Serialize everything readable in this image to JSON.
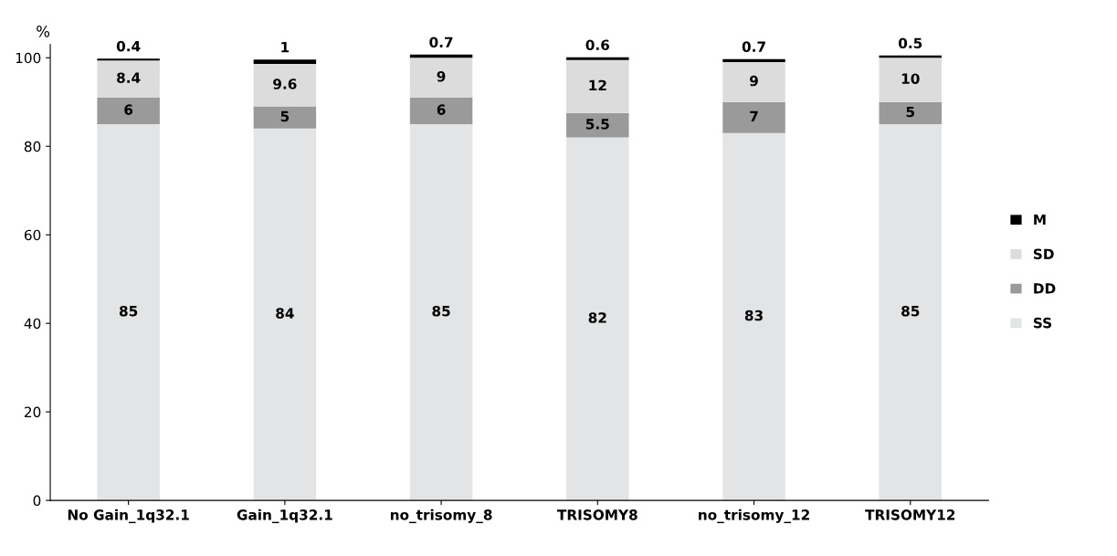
{
  "chart_data": {
    "type": "bar",
    "stacked": true,
    "ylabel": "%",
    "categories": [
      "No Gain_1q32.1",
      "Gain_1q32.1",
      "no_trisomy_8",
      "TRISOMY8",
      "no_trisomy_12",
      "TRISOMY12"
    ],
    "series": [
      {
        "name": "SS",
        "color": "#e3e4e6",
        "values": [
          85,
          84,
          85,
          82,
          83,
          85
        ]
      },
      {
        "name": "DD",
        "color": "#9a9a9a",
        "values": [
          6,
          5,
          6,
          5.5,
          7,
          5
        ]
      },
      {
        "name": "SD",
        "color": "#dcdcdc",
        "values": [
          8.4,
          9.6,
          9,
          12,
          9,
          10
        ]
      },
      {
        "name": "M",
        "color": "#000000",
        "values": [
          0.4,
          1,
          0.7,
          0.6,
          0.7,
          0.5
        ]
      }
    ],
    "ylim": [
      0,
      103
    ],
    "yticks": [
      0,
      20,
      40,
      60,
      80,
      100
    ],
    "grid": false,
    "legend": "right",
    "data_labels": true
  }
}
